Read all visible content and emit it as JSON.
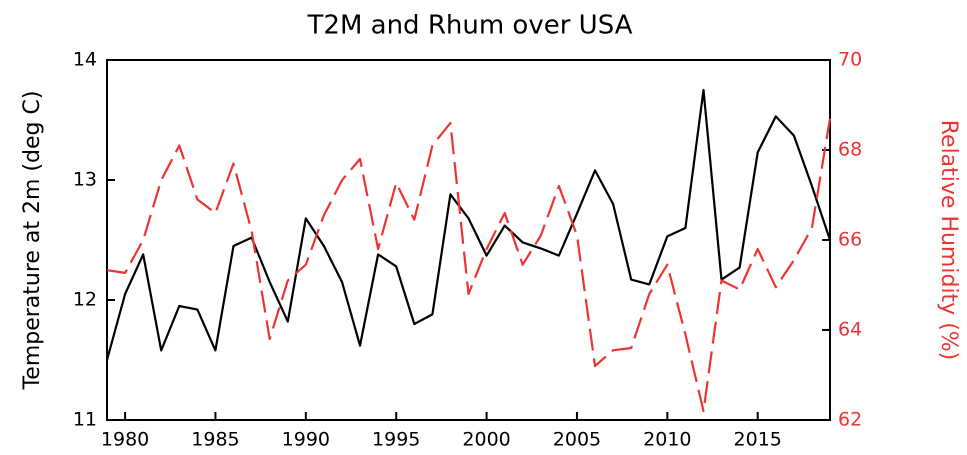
{
  "chart_data": {
    "type": "line",
    "title": "T2M and Rhum over USA",
    "ylabel": "Temperature at 2m (deg C)",
    "y2label": "Relative Humidity (%)",
    "x": [
      1979,
      1980,
      1981,
      1982,
      1983,
      1984,
      1985,
      1986,
      1987,
      1988,
      1989,
      1990,
      1991,
      1992,
      1993,
      1994,
      1995,
      1996,
      1997,
      1998,
      1999,
      2000,
      2001,
      2002,
      2003,
      2004,
      2005,
      2006,
      2007,
      2008,
      2009,
      2010,
      2011,
      2012,
      2013,
      2014,
      2015,
      2016,
      2017,
      2018,
      2019
    ],
    "xlim": [
      1979,
      2019
    ],
    "xticks": [
      1980,
      1985,
      1990,
      1995,
      2000,
      2005,
      2010,
      2015
    ],
    "ylim": [
      11,
      14
    ],
    "yticks": [
      11,
      12,
      13,
      14
    ],
    "y2lim": [
      62,
      70
    ],
    "y2ticks": [
      62,
      64,
      66,
      68,
      70
    ],
    "series": [
      {
        "name": "T2M",
        "color": "#000000",
        "dash": false,
        "values": [
          11.5,
          12.05,
          12.38,
          11.58,
          11.95,
          11.92,
          11.58,
          12.45,
          12.52,
          12.15,
          11.82,
          12.68,
          12.45,
          12.15,
          11.62,
          12.38,
          12.28,
          11.8,
          11.88,
          12.88,
          12.68,
          12.37,
          12.62,
          12.48,
          12.43,
          12.37,
          12.72,
          13.08,
          12.8,
          12.17,
          12.13,
          12.53,
          12.6,
          13.75,
          12.17,
          12.27,
          13.23,
          13.53,
          13.37,
          12.95,
          12.5
        ]
      },
      {
        "name": "Rhum",
        "color": "#ee3333",
        "dash": true,
        "axis": "y2",
        "values": [
          65.33,
          65.27,
          66.0,
          67.33,
          68.1,
          66.9,
          66.6,
          67.7,
          66.2,
          63.8,
          65.1,
          65.45,
          66.55,
          67.33,
          67.8,
          65.8,
          67.27,
          66.45,
          68.1,
          68.6,
          64.8,
          65.8,
          66.6,
          65.45,
          66.1,
          67.2,
          66.1,
          63.2,
          63.55,
          63.6,
          64.8,
          65.45,
          63.9,
          62.2,
          65.1,
          64.9,
          65.8,
          64.95,
          65.55,
          66.27,
          68.7
        ]
      }
    ]
  }
}
